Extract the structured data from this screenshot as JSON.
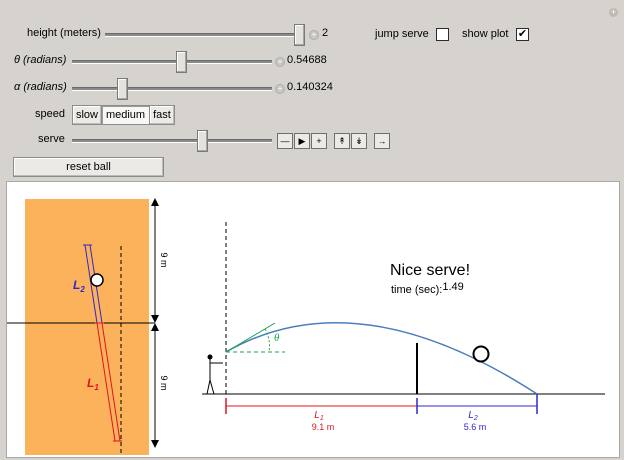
{
  "controls": {
    "height": {
      "label": "height (meters)",
      "value": "2",
      "fraction": 1.0
    },
    "theta": {
      "label": "θ (radians)",
      "value": "0.54688",
      "fraction": 0.55
    },
    "alpha": {
      "label": "α (radians)",
      "value": "0.140324",
      "fraction": 0.24
    },
    "speed": {
      "label": "speed",
      "options": [
        "slow",
        "medium",
        "fast"
      ],
      "selected": "medium"
    },
    "serve": {
      "label": "serve",
      "fraction": 0.66
    },
    "jump_serve": {
      "label": "jump serve",
      "checked": false
    },
    "show_plot": {
      "label": "show plot",
      "checked": true,
      "mark": "✔"
    },
    "reset_label": "reset ball"
  },
  "anim_controls": [
    "step-back-icon",
    "play-icon",
    "step-forward-icon",
    "faster-icon",
    "slower-icon",
    "direction-icon"
  ],
  "court": {
    "dim_top": "9 m",
    "dim_bottom": "9 m",
    "L1": "L",
    "L1_sub": "1",
    "L2": "L",
    "L2_sub": "2"
  },
  "plot": {
    "message": "Nice serve!",
    "time_label": "time (sec):",
    "time_value": "1.49",
    "theta_symbol": "θ",
    "L1": "L",
    "L1_sub": "1",
    "L1_value": "9.1 m",
    "L2": "L",
    "L2_sub": "2",
    "L2_value": "5.6 m"
  },
  "colors": {
    "court": "#fcb25b",
    "trajectory": "#4a7dbd",
    "L1": "#e0141e",
    "L2": "#2f27d0",
    "theta": "#17a64a"
  }
}
